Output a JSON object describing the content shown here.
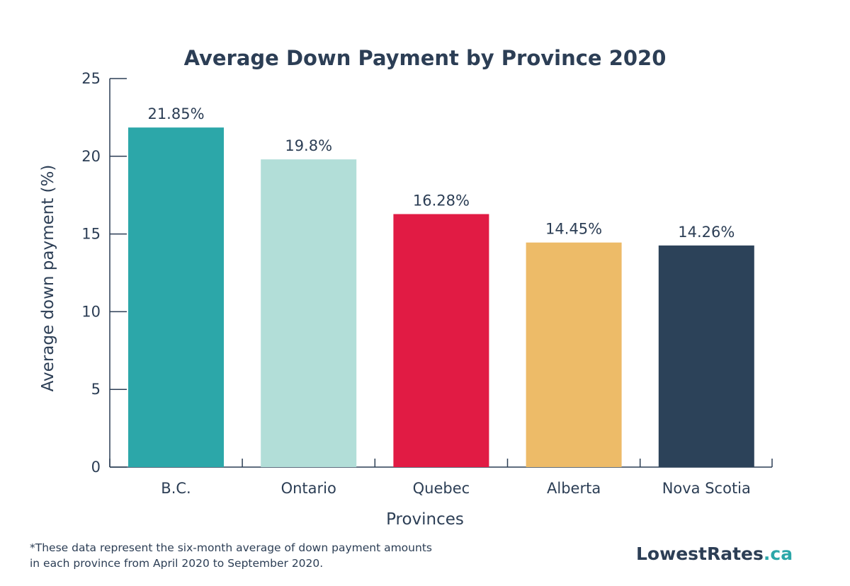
{
  "chart_data": {
    "type": "bar",
    "title": "Average Down Payment by Province 2020",
    "xlabel": "Provinces",
    "ylabel": "Average down payment (%)",
    "categories": [
      "B.C.",
      "Ontario",
      "Quebec",
      "Alberta",
      "Nova Scotia"
    ],
    "values": [
      21.85,
      19.8,
      16.28,
      14.45,
      14.26
    ],
    "data_labels": [
      "21.85%",
      "19.8%",
      "16.28%",
      "14.45%",
      "14.26%"
    ],
    "colors": [
      "#2ca7a9",
      "#b2ded8",
      "#e11b44",
      "#edbb68",
      "#2c4259"
    ],
    "ylim": [
      0,
      25
    ],
    "yticks": [
      0,
      5,
      10,
      15,
      20,
      25
    ],
    "grid": false,
    "legend": "none"
  },
  "footnote": {
    "line1": "*These data represent the six-month average of down payment amounts",
    "line2": "in each province from April 2020 to September 2020."
  },
  "logo": {
    "main": "LowestRates",
    "tld": ".ca"
  }
}
